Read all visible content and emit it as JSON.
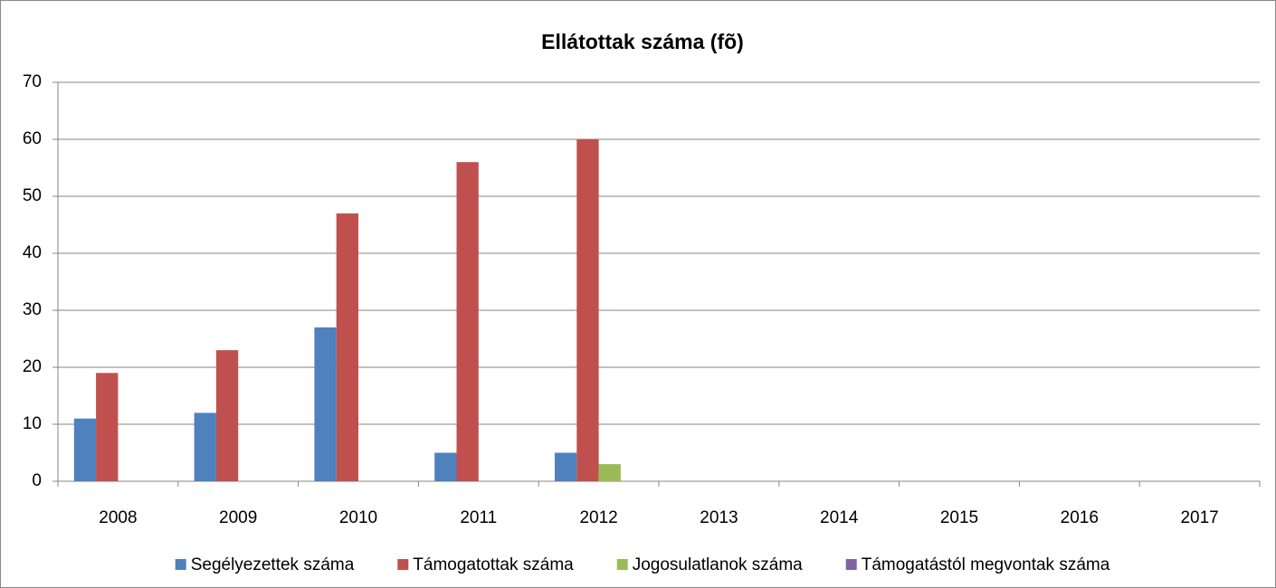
{
  "chart_data": {
    "type": "bar",
    "title": "Ellátottak száma (fõ)",
    "categories": [
      "2008",
      "2009",
      "2010",
      "2011",
      "2012",
      "2013",
      "2014",
      "2015",
      "2016",
      "2017"
    ],
    "series": [
      {
        "name": "Segélyezettek száma",
        "color": "#4f81bd",
        "values": [
          11,
          12,
          27,
          5,
          5,
          null,
          null,
          null,
          null,
          null
        ]
      },
      {
        "name": "Támogatottak száma",
        "color": "#c0504d",
        "values": [
          19,
          23,
          47,
          56,
          60,
          null,
          null,
          null,
          null,
          null
        ]
      },
      {
        "name": "Jogosulatlanok száma",
        "color": "#9bbb59",
        "values": [
          0,
          0,
          0,
          0,
          3,
          null,
          null,
          null,
          null,
          null
        ]
      },
      {
        "name": "Támogatástól megvontak száma",
        "color": "#8064a2",
        "values": [
          0,
          0,
          0,
          0,
          0,
          null,
          null,
          null,
          null,
          null
        ]
      }
    ],
    "ylim": [
      0,
      70
    ],
    "yticks": [
      0,
      10,
      20,
      30,
      40,
      50,
      60,
      70
    ],
    "grid": true,
    "legend": "bottom"
  }
}
